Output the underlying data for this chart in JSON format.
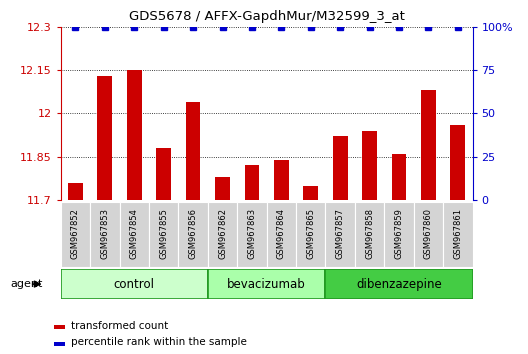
{
  "title": "GDS5678 / AFFX-GapdhMur/M32599_3_at",
  "samples": [
    "GSM967852",
    "GSM967853",
    "GSM967854",
    "GSM967855",
    "GSM967856",
    "GSM967862",
    "GSM967863",
    "GSM967864",
    "GSM967865",
    "GSM967857",
    "GSM967858",
    "GSM967859",
    "GSM967860",
    "GSM967861"
  ],
  "bar_values": [
    11.76,
    12.13,
    12.15,
    11.88,
    12.04,
    11.78,
    11.82,
    11.84,
    11.75,
    11.92,
    11.94,
    11.86,
    12.08,
    11.96
  ],
  "percentile_values": [
    100,
    100,
    100,
    100,
    100,
    100,
    100,
    100,
    100,
    100,
    100,
    100,
    100,
    100
  ],
  "bar_color": "#cc0000",
  "percentile_color": "#0000cc",
  "ylim_left": [
    11.7,
    12.3
  ],
  "ylim_right": [
    0,
    100
  ],
  "yticks_left": [
    11.7,
    11.85,
    12.0,
    12.15,
    12.3
  ],
  "yticks_right": [
    0,
    25,
    50,
    75,
    100
  ],
  "ytick_labels_left": [
    "11.7",
    "11.85",
    "12",
    "12.15",
    "12.3"
  ],
  "ytick_labels_right": [
    "0",
    "25",
    "50",
    "75",
    "100%"
  ],
  "groups": [
    {
      "label": "control",
      "start": 0,
      "end": 5,
      "color": "#ccffcc"
    },
    {
      "label": "bevacizumab",
      "start": 5,
      "end": 9,
      "color": "#aaffaa"
    },
    {
      "label": "dibenzazepine",
      "start": 9,
      "end": 14,
      "color": "#44cc44"
    }
  ],
  "agent_label": "agent",
  "legend_items": [
    {
      "label": "transformed count",
      "color": "#cc0000"
    },
    {
      "label": "percentile rank within the sample",
      "color": "#0000cc"
    }
  ],
  "grid_linestyle": ":",
  "bar_width": 0.5
}
